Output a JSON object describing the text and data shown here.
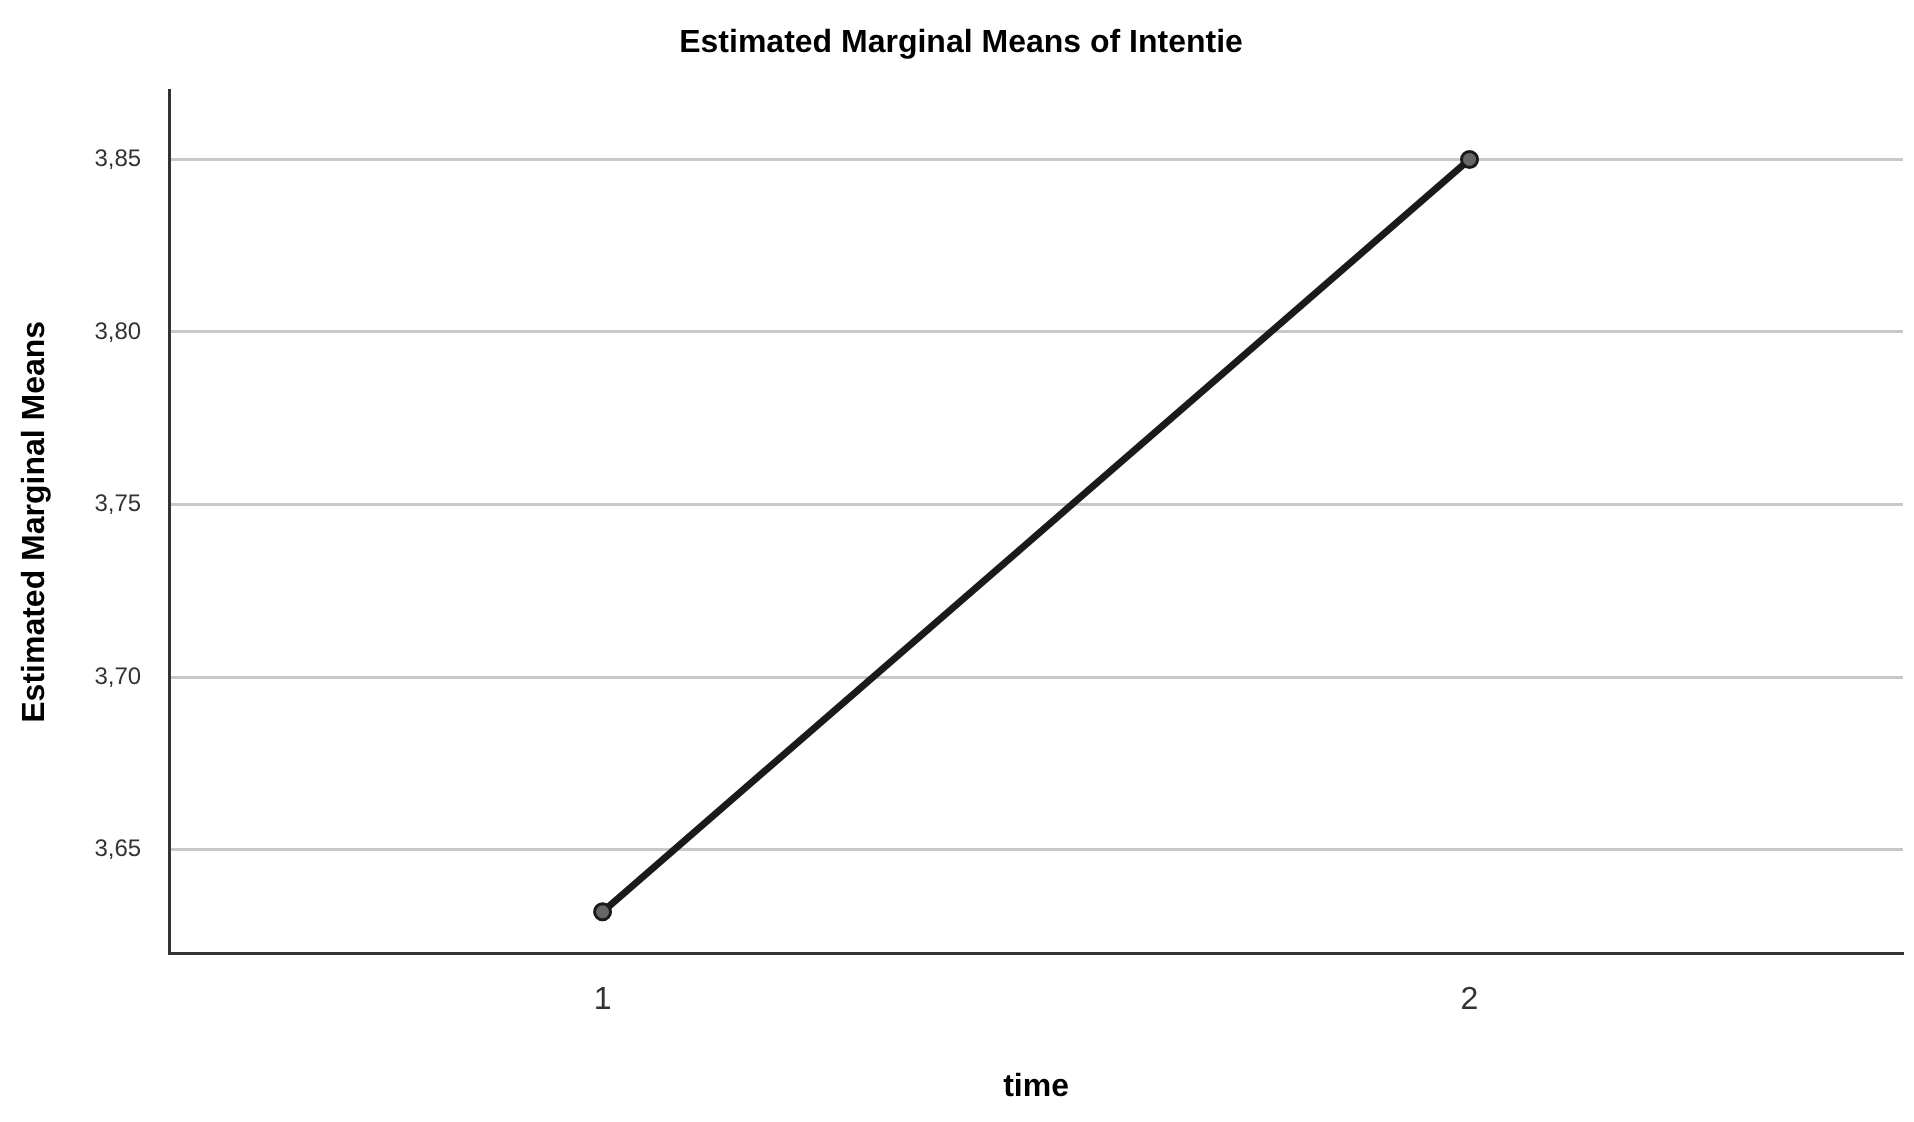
{
  "chart_data": {
    "type": "line",
    "title": "Estimated Marginal Means of Intentie",
    "xlabel": "time",
    "ylabel": "Estimated Marginal Means",
    "categories": [
      "1",
      "2"
    ],
    "series": [
      {
        "color": "#1a1a1a",
        "values": [
          3.632,
          3.85
        ]
      }
    ],
    "ylim": [
      3.62,
      3.87
    ],
    "yticks": [
      {
        "value": 3.65,
        "label": "3,65"
      },
      {
        "value": 3.7,
        "label": "3,70"
      },
      {
        "value": 3.75,
        "label": "3,75"
      },
      {
        "value": 3.8,
        "label": "3,80"
      },
      {
        "value": 3.85,
        "label": "3,85"
      }
    ],
    "grid": "y",
    "legend": false,
    "marker": "circle",
    "line_style": "solid"
  }
}
